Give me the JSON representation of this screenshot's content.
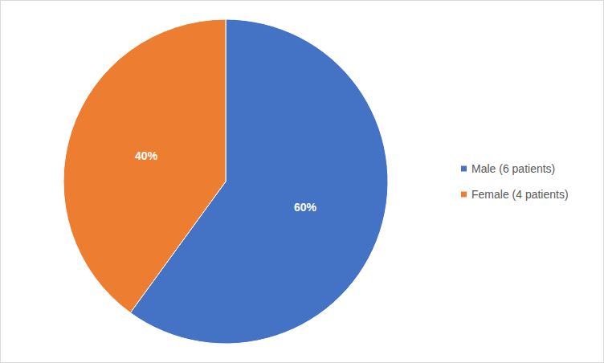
{
  "chart_data": {
    "type": "pie",
    "categories": [
      "Male (6 patients)",
      "Female (4 patients)"
    ],
    "values": [
      60,
      40
    ],
    "value_labels": [
      "60%",
      "40%"
    ],
    "colors": [
      "#4472c4",
      "#ed7d31"
    ],
    "data_labels": true,
    "legend": "right"
  }
}
